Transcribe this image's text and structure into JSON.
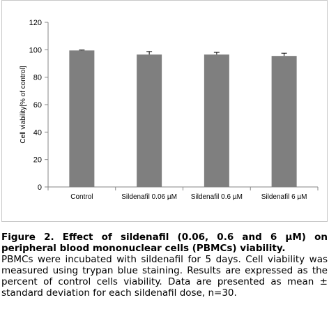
{
  "chart_data": {
    "type": "bar",
    "title": "",
    "xlabel": "",
    "ylabel": "Cell viability[% of control]",
    "ylim": [
      0,
      120
    ],
    "yticks": [
      0,
      20,
      40,
      60,
      80,
      100,
      120
    ],
    "categories": [
      "Control",
      "Sildenafil 0.06 µM",
      "Sildenafil 0.6 µM",
      "Sildenafil 6 µM"
    ],
    "values": [
      99.5,
      96.5,
      96.5,
      95.5
    ],
    "errors": [
      0.3,
      2.2,
      1.6,
      2.0
    ],
    "bar_color": "#7f7f7f",
    "grid": false,
    "legend": "none"
  },
  "caption": {
    "title": "Figure 2. Effect of sildenafil (0.06, 0.6 and 6 µM) on peripheral blood mononuclear cells (PBMCs) viability.",
    "body": "PBMCs were incubated with sildenafil for 5 days. Cell viability was measured using trypan blue staining. Results are expressed as the percent of control cells viability. Data are presented as mean ± standard deviation for each sildenafil dose, n=30."
  }
}
